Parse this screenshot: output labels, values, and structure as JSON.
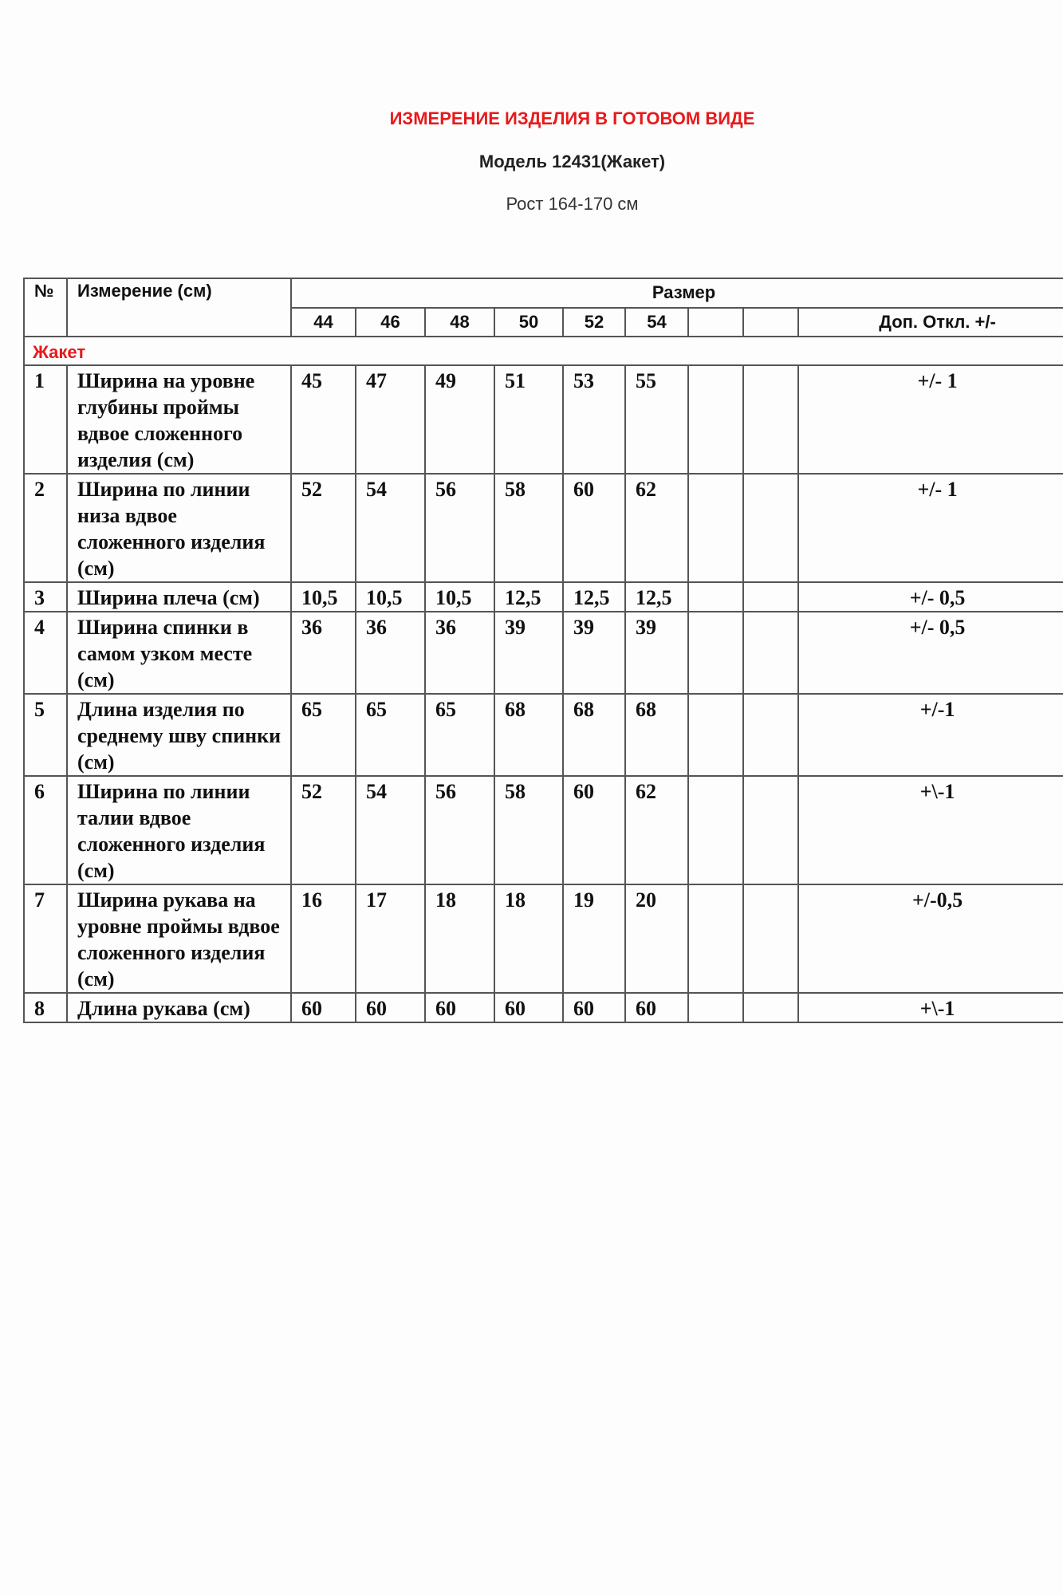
{
  "title": "ИЗМЕРЕНИЕ ИЗДЕЛИЯ В ГОТОВОМ ВИДЕ",
  "model": "Модель 12431(Жакет)",
  "height": "Рост 164-170 см",
  "colors": {
    "title": "#e8191b",
    "section": "#e8191b"
  },
  "table": {
    "headers": {
      "no": "№",
      "measure": "Измерение (см)",
      "size": "Размер",
      "tolerance": "Доп.  Откл. +/-"
    },
    "sizes": [
      "44",
      "46",
      "48",
      "50",
      "52",
      "54",
      "",
      ""
    ],
    "section": "Жакет",
    "rows": [
      {
        "no": "1",
        "name": "Ширина на уровне глубины проймы вдвое сложенного изделия (см)",
        "values": [
          "45",
          "47",
          "49",
          "51",
          "53",
          "55"
        ],
        "tol": "+/- 1"
      },
      {
        "no": "2",
        "name": "Ширина по линии низа вдвое сложенного изделия (см)",
        "values": [
          "52",
          "54",
          "56",
          "58",
          "60",
          "62"
        ],
        "tol": "+/- 1"
      },
      {
        "no": "3",
        "name": "Ширина плеча (см)",
        "values": [
          "10,5",
          "10,5",
          "10,5",
          "12,5",
          "12,5",
          "12,5"
        ],
        "tol": "+/- 0,5"
      },
      {
        "no": "4",
        "name": "Ширина спинки в самом узком месте (см)",
        "values": [
          "36",
          "36",
          "36",
          "39",
          "39",
          "39"
        ],
        "tol": "+/- 0,5"
      },
      {
        "no": "5",
        "name": "Длина изделия по среднему шву спинки (см)",
        "values": [
          "65",
          "65",
          "65",
          "68",
          "68",
          "68"
        ],
        "tol": "+/-1"
      },
      {
        "no": "6",
        "name": "Ширина по линии талии вдвое сложенного изделия (см)",
        "values": [
          "52",
          "54",
          "56",
          "58",
          "60",
          "62"
        ],
        "tol": "+\\-1"
      },
      {
        "no": "7",
        "name": "Ширина рукава на уровне проймы вдвое сложенного изделия (см)",
        "values": [
          "16",
          "17",
          "18",
          "18",
          "19",
          "20"
        ],
        "tol": "+/-0,5"
      },
      {
        "no": "8",
        "name": "Длина рукава (см)",
        "values": [
          "60",
          "60",
          "60",
          "60",
          "60",
          "60"
        ],
        "tol": "+\\-1"
      }
    ]
  }
}
